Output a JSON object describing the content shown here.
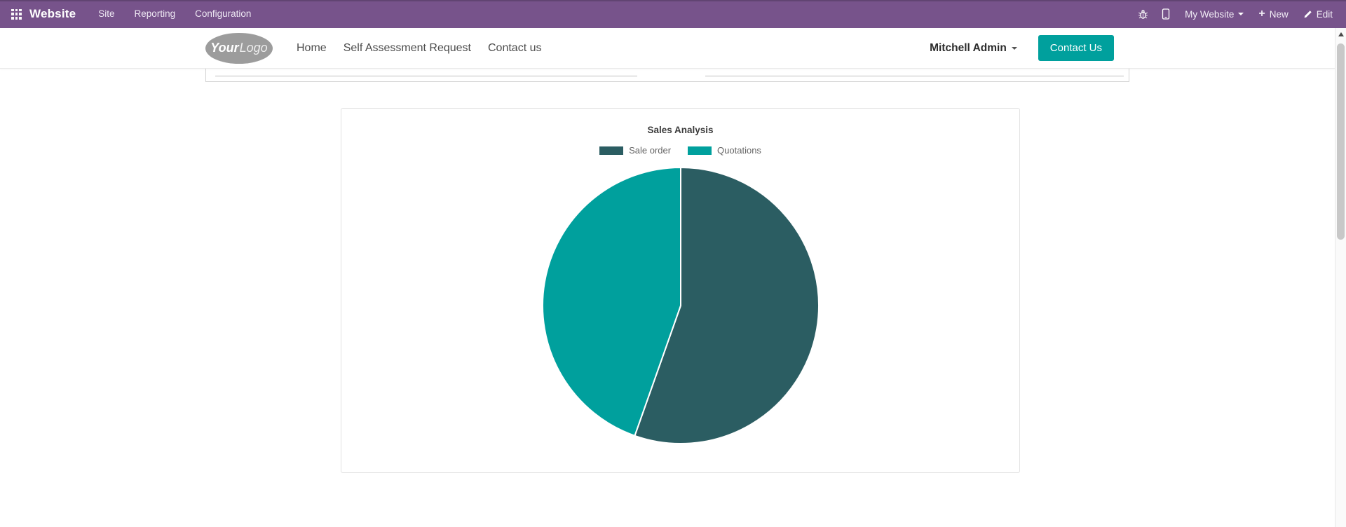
{
  "top_bar": {
    "bg": "#77538b",
    "app_name": "Website",
    "menus": [
      {
        "label": "Site"
      },
      {
        "label": "Reporting"
      },
      {
        "label": "Configuration"
      }
    ],
    "right": {
      "site_switcher_label": "My Website",
      "new_label": "New",
      "edit_label": "Edit"
    }
  },
  "site_header": {
    "accent_color": "#00a09d",
    "logo": {
      "bold": "Your",
      "light": "Logo"
    },
    "nav": [
      {
        "label": "Home"
      },
      {
        "label": "Self Assessment Request"
      },
      {
        "label": "Contact us"
      }
    ],
    "user_name": "Mitchell Admin",
    "contact_button_label": "Contact Us"
  },
  "chart_data": {
    "type": "pie",
    "title": "Sales Analysis",
    "labels": [
      "Sale order",
      "Quotations"
    ],
    "values": [
      55.4,
      44.6
    ],
    "colors": [
      "#2b5d62",
      "#00a09d"
    ],
    "border_color": "#ffffff",
    "start_angle_deg": 0,
    "legend_position": "top"
  },
  "icons": {
    "top_bar": [
      "apps-grid-icon",
      "bug-icon",
      "mobile-icon",
      "caret-down-icon",
      "plus-icon",
      "edit-pencil-icon"
    ],
    "scrollbar": [
      "scroll-up-arrow-icon"
    ]
  }
}
